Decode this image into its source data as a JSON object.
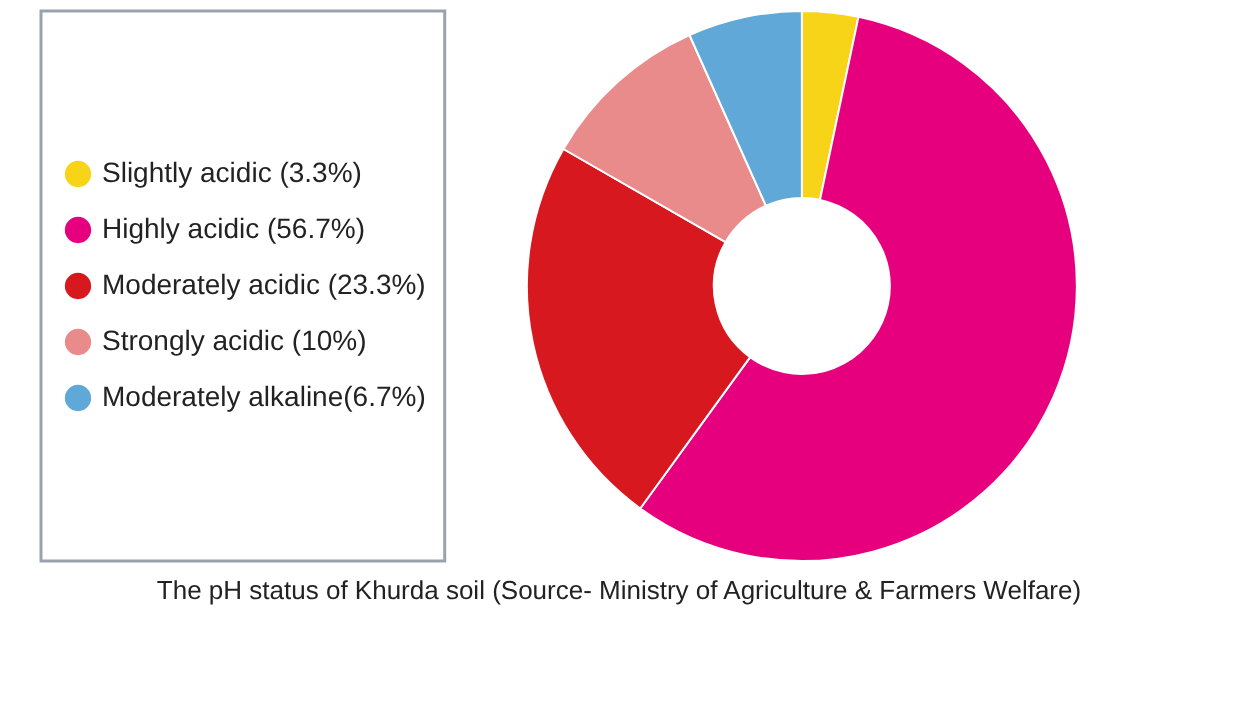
{
  "chart_data": {
    "type": "donut",
    "categories": [
      "Slightly acidic (3.3%)",
      "Highly acidic (56.7%)",
      "Moderately acidic (23.3%)",
      "Strongly acidic (10%)",
      "Moderately alkaline(6.7%)"
    ],
    "values": [
      3.3,
      56.7,
      23.3,
      10,
      6.7
    ],
    "colors": [
      "#f7d418",
      "#e6007e",
      "#d7191f",
      "#e98b8b",
      "#5fa8d8"
    ],
    "legend": "left",
    "annotations": [
      "The pH status of Khurda soil (Source- Ministry of Agriculture & Farmers Welfare)"
    ]
  }
}
